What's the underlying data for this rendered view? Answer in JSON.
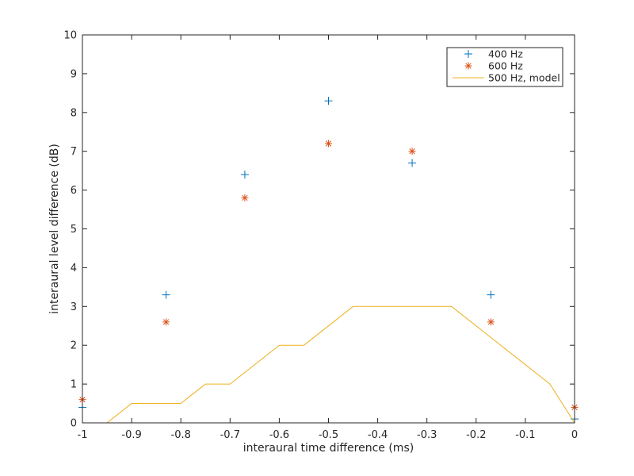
{
  "chart_data": {
    "type": "scatter",
    "title": "",
    "xlabel": "interaural time difference (ms)",
    "ylabel": "interaural level difference (dB)",
    "xlim": [
      -1,
      0
    ],
    "ylim": [
      0,
      10
    ],
    "xticks": [
      -1,
      -0.9,
      -0.8,
      -0.7,
      -0.6,
      -0.5,
      -0.4,
      -0.3,
      -0.2,
      -0.1,
      0
    ],
    "xtick_labels": [
      "-1",
      "-0.9",
      "-0.8",
      "-0.7",
      "-0.6",
      "-0.5",
      "-0.4",
      "-0.3",
      "-0.2",
      "-0.1",
      "0"
    ],
    "yticks": [
      0,
      1,
      2,
      3,
      4,
      5,
      6,
      7,
      8,
      9,
      10
    ],
    "ytick_labels": [
      "0",
      "1",
      "2",
      "3",
      "4",
      "5",
      "6",
      "7",
      "8",
      "9",
      "10"
    ],
    "grid": false,
    "legend_position": "top-right",
    "series": [
      {
        "name": "400 Hz",
        "kind": "scatter",
        "marker": "plus",
        "color": "#0072bd",
        "x": [
          -1,
          -0.83,
          -0.67,
          -0.5,
          -0.33,
          -0.17,
          0
        ],
        "y": [
          0.4,
          3.3,
          6.4,
          8.3,
          6.7,
          3.3,
          0.1
        ]
      },
      {
        "name": "600 Hz",
        "kind": "scatter",
        "marker": "asterisk",
        "color": "#d95319",
        "x": [
          -1,
          -0.83,
          -0.67,
          -0.5,
          -0.33,
          -0.17,
          0
        ],
        "y": [
          0.6,
          2.6,
          5.8,
          7.2,
          7.0,
          2.6,
          0.4
        ]
      },
      {
        "name": "500 Hz, model",
        "kind": "line",
        "color": "#edb120",
        "x": [
          -1,
          -0.95,
          -0.9,
          -0.8,
          -0.75,
          -0.7,
          -0.6,
          -0.55,
          -0.45,
          -0.25,
          -0.05,
          0
        ],
        "y": [
          0,
          0,
          0.5,
          0.5,
          1,
          1,
          2,
          2,
          3,
          3,
          1,
          0
        ]
      }
    ]
  }
}
